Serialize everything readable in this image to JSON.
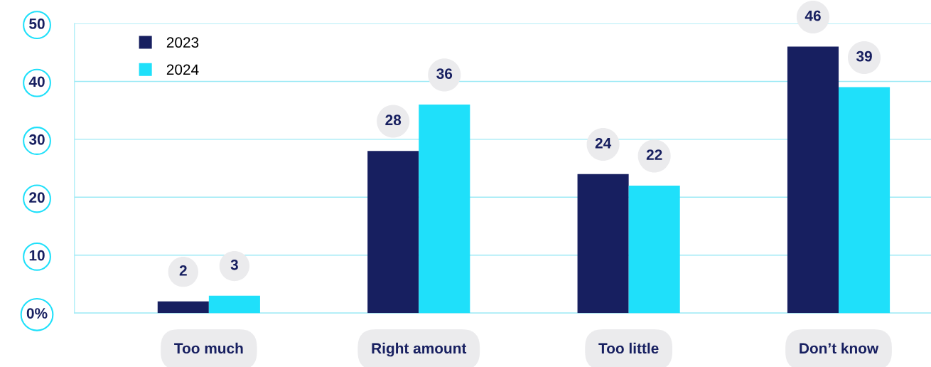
{
  "chart_data": {
    "type": "bar",
    "categories": [
      "Too much",
      "Right amount",
      "Too little",
      "Don’t know"
    ],
    "series": [
      {
        "name": "2023",
        "color": "#171f60",
        "values": [
          2,
          28,
          24,
          46
        ]
      },
      {
        "name": "2024",
        "color": "#1fe0fa",
        "values": [
          3,
          36,
          22,
          39
        ]
      }
    ],
    "ylim": [
      0,
      50
    ],
    "yticks": [
      {
        "value": 0,
        "label": "0%"
      },
      10,
      20,
      30,
      40,
      50
    ],
    "grid": "y",
    "legend": "top left",
    "data_labels": true
  }
}
